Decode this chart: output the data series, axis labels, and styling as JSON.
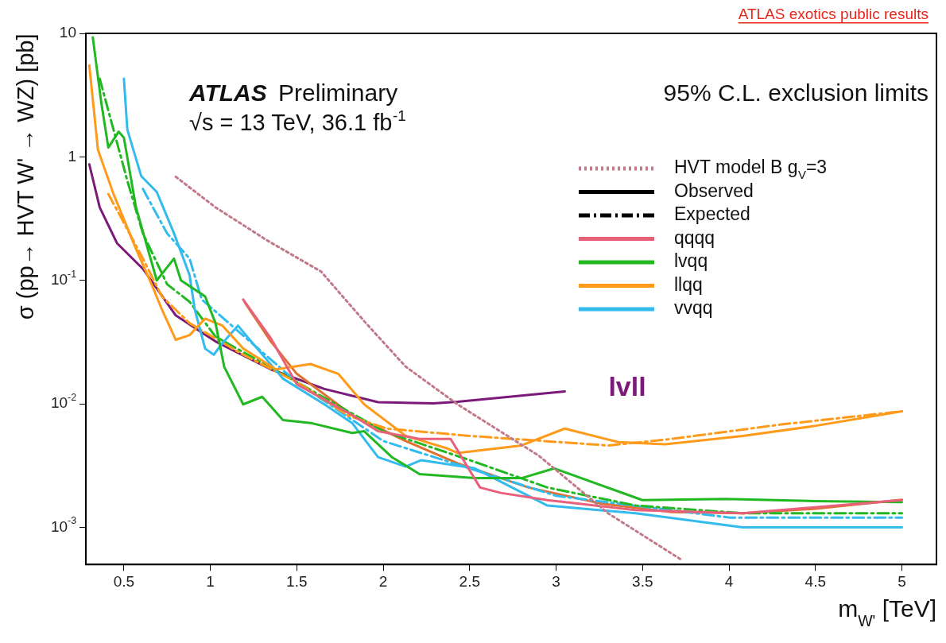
{
  "chart_data": {
    "type": "line",
    "title": "ATLAS Preliminary",
    "subtitle": "√s = 13 TeV, 36.1 fb$^{-1}$",
    "xlabel": "m$_{W'}$ [TeV]",
    "ylabel": "σ (pp→ HVT W' → WZ) [pb]",
    "annotations": [
      "95% C.L. exclusion limits",
      "ATLAS exotics public results",
      "lvll"
    ],
    "log": "y",
    "xlim": [
      0.28,
      5.2
    ],
    "xticks": [
      0.5,
      1,
      1.5,
      2,
      2.5,
      3,
      3.5,
      4,
      4.5,
      5
    ],
    "ylim": [
      0.0005,
      10
    ],
    "yticks": [
      {
        "value": 0.001,
        "label": "10$^{-3}$"
      },
      {
        "value": 0.01,
        "label": "10$^{-2}$"
      },
      {
        "value": 0.1,
        "label": "10$^{-1}$"
      },
      1,
      10
    ],
    "grid": false,
    "legend": "top right",
    "marker": "none",
    "series": [
      {
        "name": "HVT model B g$_{V}$=3",
        "color": "#c07a8a",
        "line_style": "dotted",
        "x": [
          0.8,
          1.03,
          1.33,
          1.64,
          1.9,
          2.13,
          2.43,
          2.9,
          3.3,
          3.73
        ],
        "values": [
          0.69,
          0.39,
          0.21,
          0.118,
          0.045,
          0.02,
          0.0099,
          0.0038,
          0.0013,
          0.00054
        ]
      },
      {
        "name": "Observed",
        "color": "#000000",
        "line_style": "solid"
      },
      {
        "name": "Expected",
        "color": "#000000",
        "line_style": "dashed"
      },
      {
        "name": "qqqq",
        "color": "#e8607a",
        "line_style": "solid",
        "x": [
          1.19,
          1.35,
          1.5,
          1.82,
          1.97,
          2.21,
          2.39,
          2.56,
          2.68,
          2.95,
          3.46,
          4.08,
          5.0
        ],
        "values": [
          0.07,
          0.034,
          0.0144,
          0.0081,
          0.006,
          0.0052,
          0.0052,
          0.0021,
          0.0019,
          0.00166,
          0.00138,
          0.0013,
          0.00166
        ]
      },
      {
        "name": "lvqq",
        "color": "#22b822",
        "line_style": "solid",
        "x": [
          0.32,
          0.37,
          0.41,
          0.47,
          0.5,
          0.57,
          0.69,
          0.79,
          0.83,
          0.97,
          1.03,
          1.08,
          1.19,
          1.3,
          1.42,
          1.58,
          1.82,
          1.89,
          2.05,
          2.21,
          2.53,
          2.8,
          2.99,
          3.5,
          3.98,
          4.49,
          5.0
        ],
        "values": [
          9.3,
          2.7,
          1.19,
          1.6,
          1.43,
          0.39,
          0.1,
          0.15,
          0.1,
          0.074,
          0.045,
          0.02,
          0.0099,
          0.0114,
          0.0074,
          0.007,
          0.0058,
          0.006,
          0.0037,
          0.0027,
          0.0025,
          0.0025,
          0.003,
          0.00166,
          0.0017,
          0.00163,
          0.0016
        ]
      },
      {
        "name": "llqq",
        "color": "#ff9a1a",
        "line_style": "solid",
        "x": [
          0.3,
          0.35,
          0.44,
          0.57,
          0.66,
          0.72,
          0.8,
          0.88,
          0.97,
          1.07,
          1.19,
          1.38,
          1.58,
          1.74,
          1.89,
          2.13,
          2.36,
          2.43,
          2.8,
          3.05,
          3.36,
          3.63,
          4.08,
          4.49,
          5.0
        ],
        "values": [
          5.5,
          1.14,
          0.5,
          0.18,
          0.093,
          0.058,
          0.033,
          0.036,
          0.049,
          0.043,
          0.028,
          0.019,
          0.021,
          0.0175,
          0.0099,
          0.0055,
          0.0044,
          0.004,
          0.0046,
          0.0063,
          0.0049,
          0.0047,
          0.0055,
          0.0066,
          0.0087
        ]
      },
      {
        "name": "vvqq",
        "color": "#33bbee",
        "line_style": "solid",
        "x": [
          0.5,
          0.52,
          0.6,
          0.69,
          0.79,
          0.88,
          0.91,
          0.97,
          1.02,
          1.07,
          1.16,
          1.22,
          1.42,
          1.66,
          1.82,
          1.97,
          2.13,
          2.22,
          2.53,
          2.95,
          3.46,
          4.08,
          5.0
        ],
        "values": [
          4.3,
          1.66,
          0.7,
          0.52,
          0.24,
          0.11,
          0.058,
          0.028,
          0.025,
          0.031,
          0.043,
          0.034,
          0.016,
          0.0099,
          0.007,
          0.0037,
          0.0031,
          0.0035,
          0.003,
          0.0015,
          0.0013,
          0.001,
          0.001
        ]
      },
      {
        "color": "#ff9a1a",
        "line_style": "dashed",
        "x": [
          0.41,
          0.49,
          0.61,
          0.72,
          0.88,
          1.19,
          1.5,
          1.8,
          2.02,
          2.5,
          3.3,
          3.67,
          4.3,
          5.0
        ],
        "values": [
          0.5,
          0.31,
          0.15,
          0.074,
          0.045,
          0.025,
          0.015,
          0.008,
          0.0063,
          0.0055,
          0.0046,
          0.0052,
          0.0068,
          0.0087
        ]
      },
      {
        "color": "#22b822",
        "line_style": "dashed",
        "x": [
          0.36,
          0.44,
          0.52,
          0.61,
          0.75,
          0.88,
          1.03,
          1.5,
          2.0,
          2.5,
          2.95,
          3.46,
          4.08,
          5.0
        ],
        "values": [
          4.3,
          1.66,
          0.64,
          0.24,
          0.093,
          0.067,
          0.035,
          0.015,
          0.006,
          0.0035,
          0.0021,
          0.0015,
          0.0013,
          0.0013
        ]
      },
      {
        "color": "#33bbee",
        "line_style": "dashed",
        "x": [
          0.61,
          0.75,
          0.88,
          0.95,
          1.5,
          2.0,
          3.0,
          4.0,
          5.0
        ],
        "values": [
          0.55,
          0.24,
          0.15,
          0.07,
          0.015,
          0.005,
          0.0018,
          0.0012,
          0.0012
        ]
      },
      {
        "color": "#e07030",
        "line_style": "solid",
        "x": [
          1.2,
          1.35,
          1.5,
          1.82,
          2.13,
          2.43,
          2.84,
          3.26,
          3.67,
          4.08,
          4.49,
          5.0
        ],
        "values": [
          0.066,
          0.032,
          0.0175,
          0.0081,
          0.005,
          0.0033,
          0.0021,
          0.00156,
          0.00133,
          0.0013,
          0.00141,
          0.00167
        ]
      },
      {
        "color": "#7b1a78",
        "line_style": "solid",
        "x": [
          0.3,
          0.36,
          0.46,
          0.61,
          0.8,
          1.03,
          1.35,
          1.66,
          1.97,
          2.29,
          2.43,
          3.05
        ],
        "values": [
          0.87,
          0.39,
          0.2,
          0.124,
          0.052,
          0.032,
          0.019,
          0.0132,
          0.0103,
          0.0101,
          0.0104,
          0.0126
        ]
      }
    ]
  }
}
